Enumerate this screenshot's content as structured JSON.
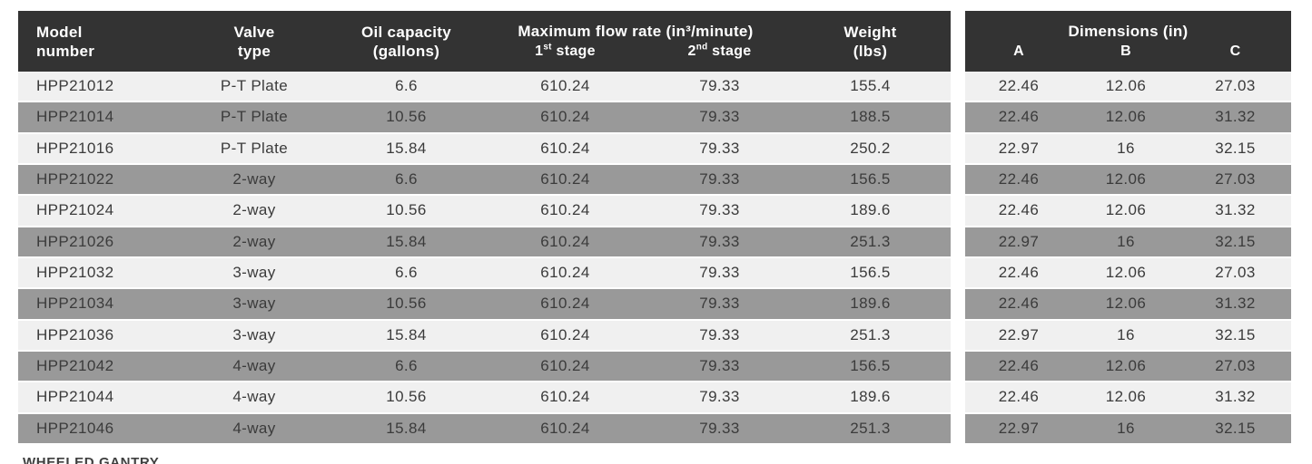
{
  "colors": {
    "page_bg": "#ffffff",
    "header_bg": "#333333",
    "header_text": "#ffffff",
    "row_light": "#f0f0f0",
    "row_dark": "#999999",
    "body_text": "#3b3b3b"
  },
  "spec_table": {
    "headers": {
      "model": {
        "line1": "Model",
        "line2": "number"
      },
      "valve": {
        "line1": "Valve",
        "line2": "type"
      },
      "oil": {
        "line1": "Oil capacity",
        "line2": "(gallons)"
      },
      "flow": {
        "title": "Maximum flow rate (in³/minute)",
        "stage1": {
          "num": "1",
          "sup": "st",
          "word": " stage"
        },
        "stage2": {
          "num": "2",
          "sup": "nd",
          "word": " stage"
        }
      },
      "weight": {
        "line1": "Weight",
        "line2": "(lbs)"
      }
    },
    "rows": [
      {
        "model": "HPP21012",
        "valve": "P-T Plate",
        "oil": "6.6",
        "stage1": "610.24",
        "stage2": "79.33",
        "weight": "155.4"
      },
      {
        "model": "HPP21014",
        "valve": "P-T Plate",
        "oil": "10.56",
        "stage1": "610.24",
        "stage2": "79.33",
        "weight": "188.5"
      },
      {
        "model": "HPP21016",
        "valve": "P-T Plate",
        "oil": "15.84",
        "stage1": "610.24",
        "stage2": "79.33",
        "weight": "250.2"
      },
      {
        "model": "HPP21022",
        "valve": "2-way",
        "oil": "6.6",
        "stage1": "610.24",
        "stage2": "79.33",
        "weight": "156.5"
      },
      {
        "model": "HPP21024",
        "valve": "2-way",
        "oil": "10.56",
        "stage1": "610.24",
        "stage2": "79.33",
        "weight": "189.6"
      },
      {
        "model": "HPP21026",
        "valve": "2-way",
        "oil": "15.84",
        "stage1": "610.24",
        "stage2": "79.33",
        "weight": "251.3"
      },
      {
        "model": "HPP21032",
        "valve": "3-way",
        "oil": "6.6",
        "stage1": "610.24",
        "stage2": "79.33",
        "weight": "156.5"
      },
      {
        "model": "HPP21034",
        "valve": "3-way",
        "oil": "10.56",
        "stage1": "610.24",
        "stage2": "79.33",
        "weight": "189.6"
      },
      {
        "model": "HPP21036",
        "valve": "3-way",
        "oil": "15.84",
        "stage1": "610.24",
        "stage2": "79.33",
        "weight": "251.3"
      },
      {
        "model": "HPP21042",
        "valve": "4-way",
        "oil": "6.6",
        "stage1": "610.24",
        "stage2": "79.33",
        "weight": "156.5"
      },
      {
        "model": "HPP21044",
        "valve": "4-way",
        "oil": "10.56",
        "stage1": "610.24",
        "stage2": "79.33",
        "weight": "189.6"
      },
      {
        "model": "HPP21046",
        "valve": "4-way",
        "oil": "15.84",
        "stage1": "610.24",
        "stage2": "79.33",
        "weight": "251.3"
      }
    ]
  },
  "dimensions_table": {
    "title": "Dimensions (in)",
    "columns": {
      "a": "A",
      "b": "B",
      "c": "C"
    },
    "rows": [
      {
        "a": "22.46",
        "b": "12.06",
        "c": "27.03"
      },
      {
        "a": "22.46",
        "b": "12.06",
        "c": "31.32"
      },
      {
        "a": "22.97",
        "b": "16",
        "c": "32.15"
      },
      {
        "a": "22.46",
        "b": "12.06",
        "c": "27.03"
      },
      {
        "a": "22.46",
        "b": "12.06",
        "c": "31.32"
      },
      {
        "a": "22.97",
        "b": "16",
        "c": "32.15"
      },
      {
        "a": "22.46",
        "b": "12.06",
        "c": "27.03"
      },
      {
        "a": "22.46",
        "b": "12.06",
        "c": "31.32"
      },
      {
        "a": "22.97",
        "b": "16",
        "c": "32.15"
      },
      {
        "a": "22.46",
        "b": "12.06",
        "c": "27.03"
      },
      {
        "a": "22.46",
        "b": "12.06",
        "c": "31.32"
      },
      {
        "a": "22.97",
        "b": "16",
        "c": "32.15"
      }
    ]
  },
  "footer": {
    "partial_heading": "WHEELED GANTRY"
  }
}
